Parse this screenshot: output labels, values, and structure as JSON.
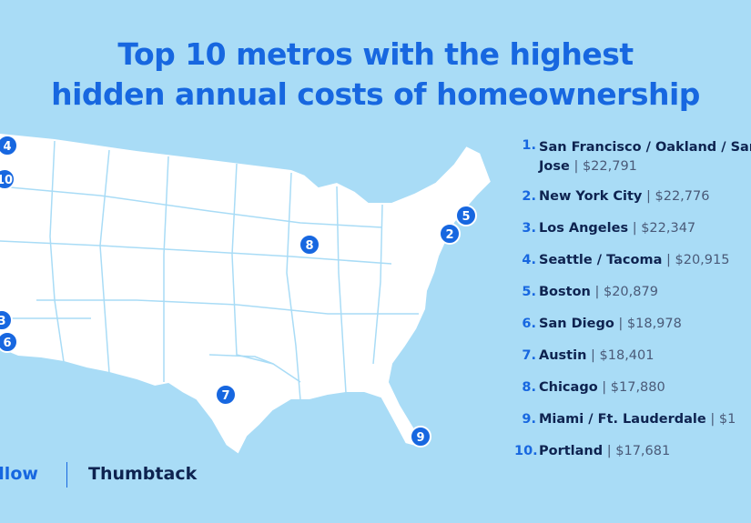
{
  "title": [
    "Top 10 metros with the highest",
    "hidden annual costs of homeownership"
  ],
  "separator": "|",
  "list": [
    {
      "rank": "1.",
      "name": "San Francisco / Oakland / San Jose",
      "cost": "$22,791"
    },
    {
      "rank": "2.",
      "name": "New York City",
      "cost": "$22,776"
    },
    {
      "rank": "3.",
      "name": "Los Angeles",
      "cost": "$22,347"
    },
    {
      "rank": "4.",
      "name": "Seattle / Tacoma",
      "cost": "$20,915"
    },
    {
      "rank": "5.",
      "name": "Boston",
      "cost": "$20,879"
    },
    {
      "rank": "6.",
      "name": "San Diego",
      "cost": "$18,978"
    },
    {
      "rank": "7.",
      "name": "Austin",
      "cost": "$18,401"
    },
    {
      "rank": "8.",
      "name": "Chicago",
      "cost": "$17,880"
    },
    {
      "rank": "9.",
      "name": "Miami / Ft. Lauderdale",
      "cost": "$1"
    },
    {
      "rank": "10.",
      "name": "Portland",
      "cost": "$17,681"
    }
  ],
  "markers": [
    "4",
    "10",
    "5",
    "2",
    "8",
    "3",
    "6",
    "7",
    "9"
  ],
  "logos": [
    "Zillow",
    "Thumbtack"
  ]
}
